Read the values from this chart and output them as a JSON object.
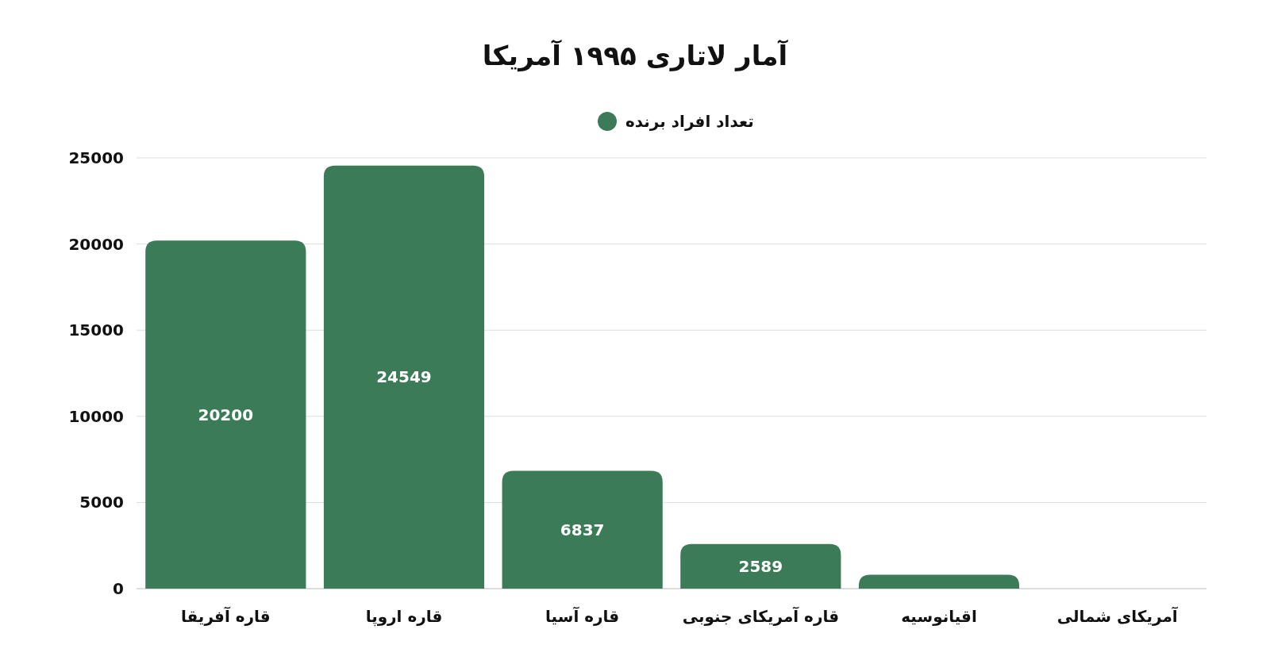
{
  "chart_data": {
    "type": "bar",
    "title": "آمار لاتاری ۱۹۹۵ آمریکا",
    "categories": [
      "قاره آفریقا",
      "قاره اروپا",
      "قاره آسیا",
      "قاره آمریکای جنوبی",
      "اقیانوسیه",
      "آمریکای شمالی"
    ],
    "series": [
      {
        "name": "تعداد افراد برنده",
        "color": "#3b7b57",
        "values": [
          20200,
          24549,
          6837,
          2589,
          800,
          0
        ],
        "value_labels": [
          "20200",
          "24549",
          "6837",
          "2589",
          null,
          null
        ]
      }
    ],
    "ylim": [
      0,
      25000
    ],
    "yticks": [
      0,
      5000,
      10000,
      15000,
      20000,
      25000
    ],
    "grid": "y",
    "legend": "top"
  }
}
